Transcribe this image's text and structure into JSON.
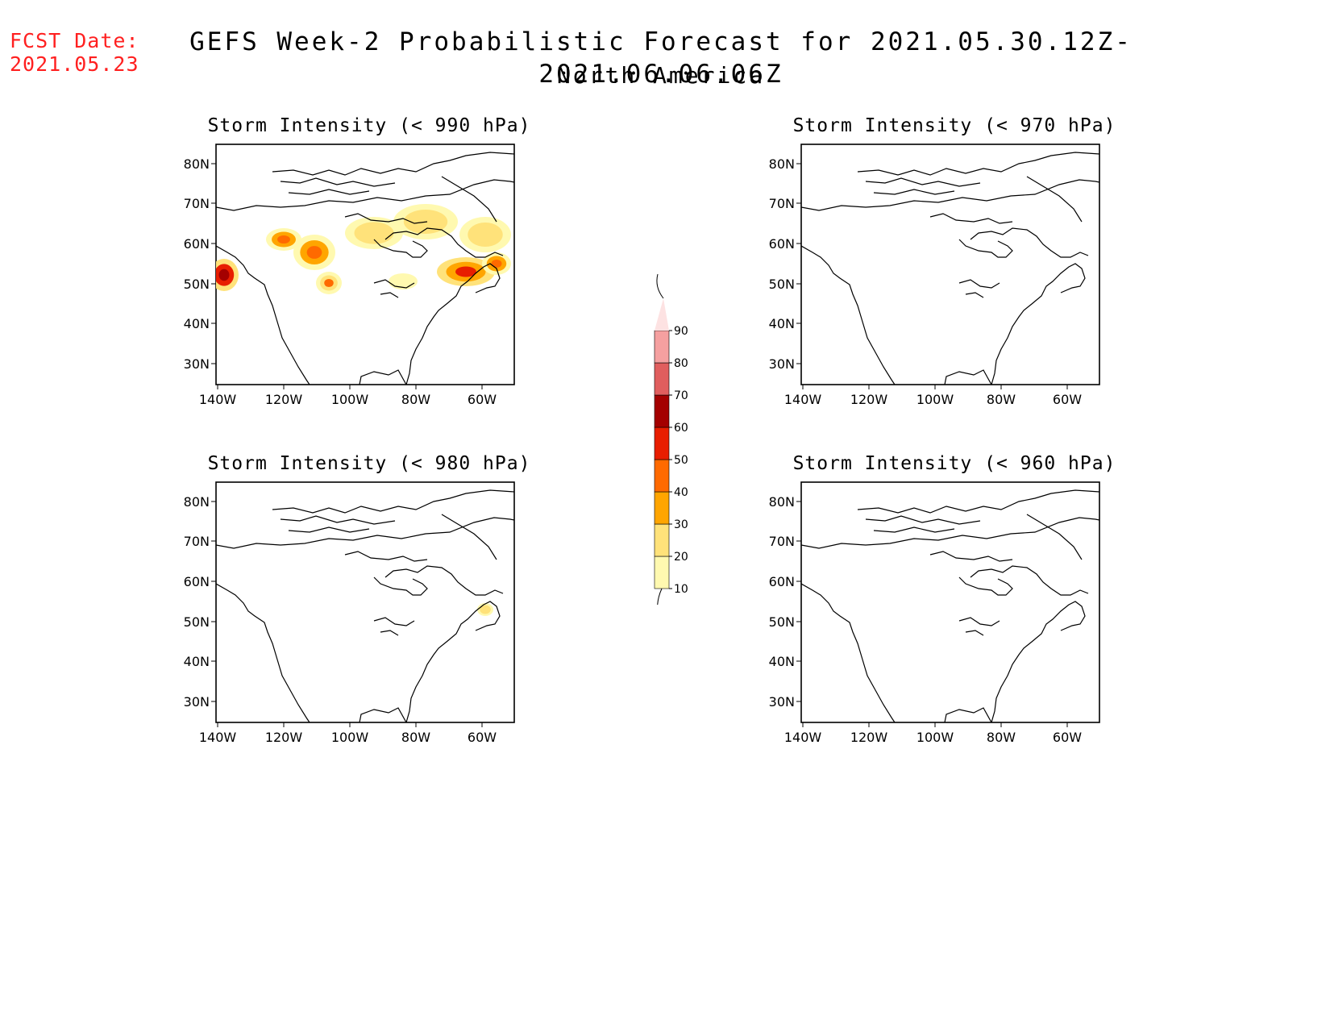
{
  "forecast_date": {
    "label": "FCST Date:",
    "value": "2021.05.23"
  },
  "title": "GEFS Week-2 Probabilistic Forecast for 2021.05.30.12Z-2021.06.06.06Z",
  "subtitle": "North America",
  "axes": {
    "lat_ticks": [
      "80N",
      "70N",
      "60N",
      "50N",
      "40N",
      "30N"
    ],
    "lon_ticks": [
      "140W",
      "120W",
      "100W",
      "80W",
      "60W"
    ]
  },
  "colorbar": {
    "levels": [
      "10",
      "20",
      "30",
      "40",
      "50",
      "60",
      "70",
      "80",
      "90"
    ],
    "colors": [
      "#fff9b0",
      "#ffe27a",
      "#ffa500",
      "#ff6a00",
      "#e81e00",
      "#a40000",
      "#e05e5e",
      "#f5a0a0",
      "#fde2e2"
    ]
  },
  "panels": [
    {
      "id": "p990",
      "title": "Storm Intensity (< 990 hPa)"
    },
    {
      "id": "p970",
      "title": "Storm Intensity (< 970 hPa)"
    },
    {
      "id": "p980",
      "title": "Storm Intensity (< 980 hPa)"
    },
    {
      "id": "p960",
      "title": "Storm Intensity (< 960 hPa)"
    }
  ]
}
